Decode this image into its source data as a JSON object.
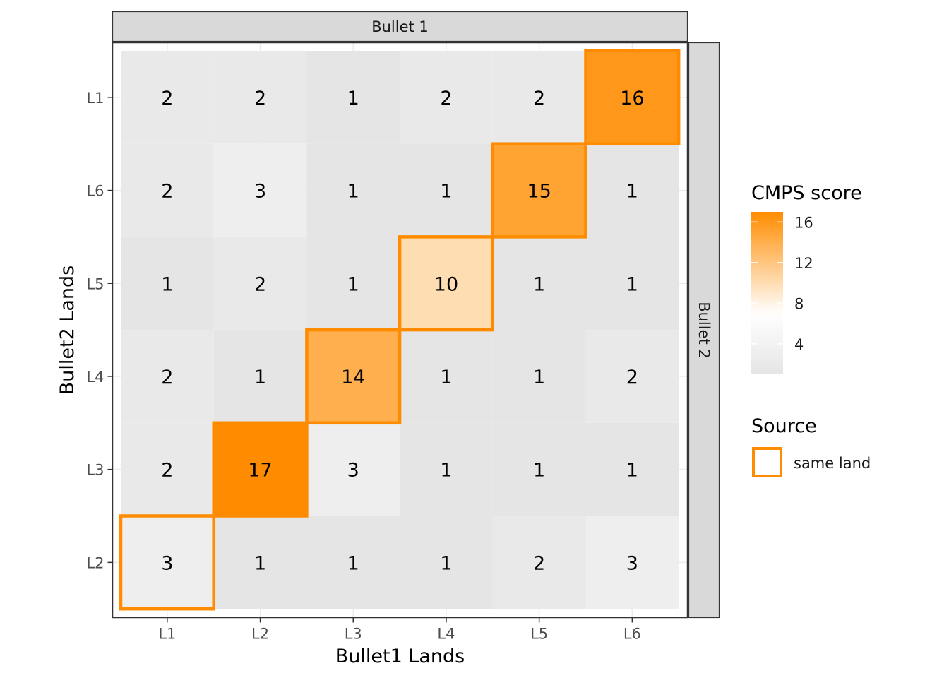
{
  "chart_data": {
    "type": "heatmap",
    "facet_top": "Bullet 1",
    "facet_right": "Bullet 2",
    "xlabel": "Bullet1 Lands",
    "ylabel": "Bullet2 Lands",
    "x_categories": [
      "L1",
      "L2",
      "L3",
      "L4",
      "L5",
      "L6"
    ],
    "y_categories_top_to_bottom": [
      "L1",
      "L6",
      "L5",
      "L4",
      "L3",
      "L2"
    ],
    "values": [
      [
        2,
        2,
        1,
        2,
        2,
        16
      ],
      [
        2,
        3,
        1,
        1,
        15,
        1
      ],
      [
        1,
        2,
        1,
        10,
        1,
        1
      ],
      [
        2,
        1,
        14,
        1,
        1,
        2
      ],
      [
        2,
        17,
        3,
        1,
        1,
        1
      ],
      [
        3,
        1,
        1,
        1,
        2,
        3
      ]
    ],
    "highlighted_cells": [
      {
        "x": "L6",
        "y": "L1"
      },
      {
        "x": "L5",
        "y": "L6"
      },
      {
        "x": "L4",
        "y": "L5"
      },
      {
        "x": "L3",
        "y": "L4"
      },
      {
        "x": "L2",
        "y": "L3"
      },
      {
        "x": "L1",
        "y": "L2"
      }
    ],
    "color_scale": {
      "low_color": "#e5e5e5",
      "mid_color": "#ffffff",
      "high_color": "#ff8c00",
      "midpoint": 7,
      "limits": [
        1,
        17
      ]
    },
    "highlight_color": "#ff8c00",
    "grid": true,
    "legend_placement": "right",
    "legend": {
      "fill_title": "CMPS score",
      "fill_breaks": [
        16,
        12,
        8,
        4
      ],
      "outline_title": "Source",
      "outline_label": "same land"
    }
  }
}
